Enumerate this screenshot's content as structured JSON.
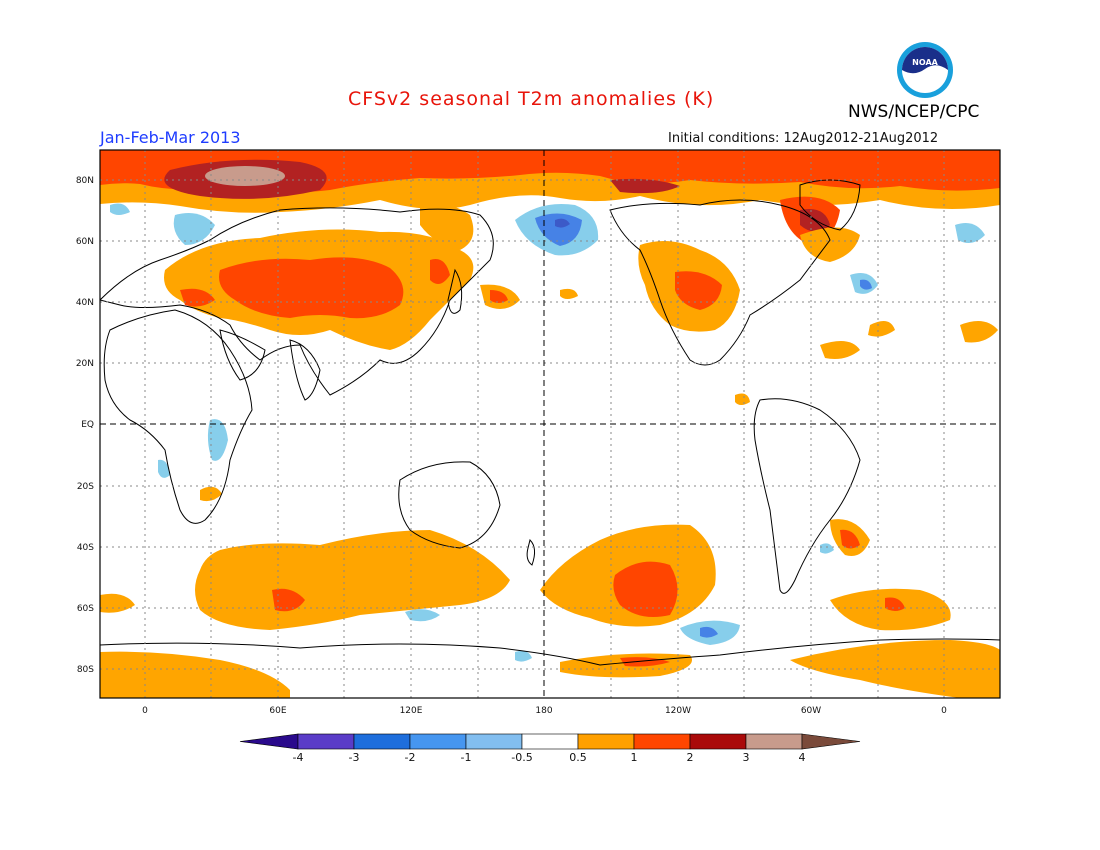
{
  "header": {
    "title": "CFSv2 seasonal T2m anomalies (K)",
    "agency": "NWS/NCEP/CPC",
    "period": "Jan-Feb-Mar 2013",
    "initial_conditions": "Initial conditions: 12Aug2012-21Aug2012",
    "logo_text": "NOAA"
  },
  "map": {
    "projection": "cylindrical equidistant",
    "lat_labels": [
      "80N",
      "60N",
      "40N",
      "20N",
      "EQ",
      "20S",
      "40S",
      "60S",
      "80S"
    ],
    "lon_labels": [
      "0",
      "60E",
      "120E",
      "180",
      "120W",
      "60W",
      "0"
    ],
    "colors": {
      "ocean_land_neutral": "#ffffff",
      "warm_1": "#ffa500",
      "warm_2": "#ff4500",
      "warm_3": "#b22222",
      "warm_4": "#a52a2a",
      "cool_1": "#87ceeb",
      "cool_2": "#4682e6"
    }
  },
  "colorbar": {
    "labels": [
      "-4",
      "-3",
      "-2",
      "-1",
      "-0.5",
      "0.5",
      "1",
      "2",
      "3",
      "4"
    ],
    "colors": [
      "#2a0a8c",
      "#5a3cc8",
      "#1e6edc",
      "#4696f0",
      "#82bef0",
      "#ffffff",
      "#ffa000",
      "#ff4600",
      "#aa0a0a",
      "#c89b8c",
      "#7a4a3a"
    ]
  }
}
